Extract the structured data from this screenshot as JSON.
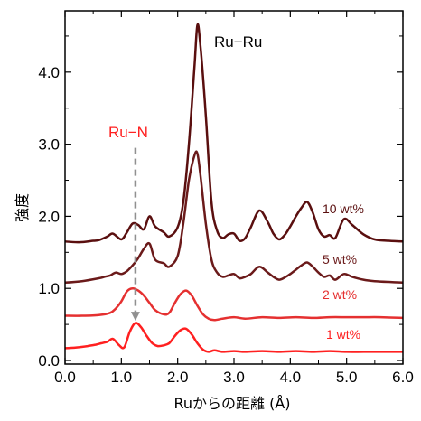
{
  "chart_data": {
    "type": "line",
    "xlabel": "Ruからの距離 (Å)",
    "ylabel": "強度",
    "xlim": [
      0.0,
      6.0
    ],
    "ylim": [
      -0.05,
      4.85
    ],
    "x_ticks": [
      "0.0",
      "1.0",
      "2.0",
      "3.0",
      "4.0",
      "5.0",
      "6.0"
    ],
    "y_ticks": [
      "0.0",
      "1.0",
      "2.0",
      "3.0",
      "4.0"
    ],
    "grid": false,
    "annotations": [
      {
        "text": "Ru−Ru",
        "color": "#000000"
      },
      {
        "text": "Ru−N",
        "color": "#ff2020",
        "arrow_x": 1.25,
        "arrow_from_y": 2.95,
        "arrow_to_y": 0.55
      }
    ],
    "series": [
      {
        "name": "10 wt%",
        "color": "#5a0f0f",
        "x": [
          0.0,
          0.25,
          0.5,
          0.6,
          0.75,
          0.85,
          1.0,
          1.1,
          1.2,
          1.3,
          1.4,
          1.5,
          1.6,
          1.75,
          1.85,
          2.0,
          2.1,
          2.2,
          2.3,
          2.35,
          2.4,
          2.5,
          2.6,
          2.7,
          2.8,
          2.9,
          3.0,
          3.1,
          3.2,
          3.3,
          3.45,
          3.6,
          3.7,
          3.8,
          3.9,
          4.0,
          4.1,
          4.2,
          4.3,
          4.4,
          4.5,
          4.6,
          4.7,
          4.8,
          4.95,
          5.1,
          5.3,
          5.5,
          5.75,
          6.0
        ],
        "y": [
          1.65,
          1.64,
          1.66,
          1.67,
          1.72,
          1.76,
          1.68,
          1.78,
          1.9,
          1.88,
          1.82,
          2.0,
          1.86,
          1.78,
          1.72,
          1.85,
          2.2,
          3.0,
          4.1,
          4.65,
          4.4,
          3.4,
          2.2,
          1.8,
          1.7,
          1.75,
          1.76,
          1.66,
          1.7,
          1.85,
          2.08,
          1.92,
          1.76,
          1.68,
          1.74,
          1.86,
          2.0,
          2.12,
          2.2,
          2.05,
          1.82,
          1.72,
          1.74,
          1.7,
          1.96,
          1.88,
          1.75,
          1.68,
          1.66,
          1.65
        ]
      },
      {
        "name": "5 wt%",
        "color": "#6b1a1a",
        "x": [
          0.0,
          0.3,
          0.6,
          0.7,
          0.8,
          0.9,
          1.0,
          1.1,
          1.2,
          1.3,
          1.4,
          1.5,
          1.6,
          1.75,
          1.85,
          2.0,
          2.1,
          2.2,
          2.3,
          2.35,
          2.4,
          2.5,
          2.6,
          2.7,
          2.8,
          2.9,
          3.0,
          3.1,
          3.2,
          3.3,
          3.45,
          3.6,
          3.7,
          3.8,
          3.9,
          4.0,
          4.1,
          4.2,
          4.3,
          4.4,
          4.5,
          4.6,
          4.7,
          4.8,
          4.95,
          5.1,
          5.3,
          5.5,
          5.75,
          6.0
        ],
        "y": [
          1.08,
          1.1,
          1.14,
          1.16,
          1.18,
          1.22,
          1.2,
          1.24,
          1.32,
          1.42,
          1.55,
          1.62,
          1.4,
          1.35,
          1.3,
          1.45,
          1.9,
          2.5,
          2.85,
          2.87,
          2.6,
          1.9,
          1.4,
          1.22,
          1.16,
          1.18,
          1.2,
          1.14,
          1.16,
          1.2,
          1.3,
          1.22,
          1.16,
          1.12,
          1.15,
          1.2,
          1.26,
          1.32,
          1.36,
          1.3,
          1.22,
          1.16,
          1.18,
          1.12,
          1.2,
          1.16,
          1.12,
          1.1,
          1.09,
          1.08
        ]
      },
      {
        "name": "2 wt%",
        "color": "#e53030",
        "x": [
          0.0,
          0.3,
          0.6,
          0.8,
          0.9,
          1.0,
          1.1,
          1.2,
          1.3,
          1.4,
          1.5,
          1.6,
          1.75,
          1.85,
          1.95,
          2.05,
          2.15,
          2.25,
          2.35,
          2.45,
          2.55,
          2.65,
          2.8,
          3.0,
          3.2,
          3.5,
          3.8,
          4.1,
          4.4,
          4.7,
          5.0,
          5.3,
          5.6,
          6.0
        ],
        "y": [
          0.62,
          0.62,
          0.63,
          0.66,
          0.72,
          0.82,
          0.96,
          1.0,
          0.97,
          0.9,
          0.8,
          0.7,
          0.64,
          0.66,
          0.8,
          0.92,
          0.97,
          0.9,
          0.76,
          0.64,
          0.58,
          0.56,
          0.58,
          0.6,
          0.58,
          0.6,
          0.59,
          0.6,
          0.59,
          0.6,
          0.6,
          0.6,
          0.6,
          0.59
        ]
      },
      {
        "name": "1 wt%",
        "color": "#ff2020",
        "x": [
          0.0,
          0.2,
          0.4,
          0.55,
          0.65,
          0.75,
          0.85,
          0.95,
          1.05,
          1.15,
          1.25,
          1.35,
          1.45,
          1.55,
          1.65,
          1.75,
          1.85,
          1.95,
          2.05,
          2.15,
          2.25,
          2.35,
          2.45,
          2.55,
          2.65,
          2.8,
          3.0,
          3.2,
          3.5,
          3.8,
          4.1,
          4.4,
          4.7,
          5.0,
          5.3,
          5.6,
          6.0
        ],
        "y": [
          0.17,
          0.18,
          0.2,
          0.22,
          0.24,
          0.26,
          0.3,
          0.22,
          0.18,
          0.4,
          0.52,
          0.46,
          0.34,
          0.24,
          0.2,
          0.21,
          0.24,
          0.34,
          0.42,
          0.44,
          0.36,
          0.24,
          0.15,
          0.12,
          0.14,
          0.12,
          0.13,
          0.12,
          0.13,
          0.12,
          0.13,
          0.12,
          0.13,
          0.12,
          0.12,
          0.12,
          0.12
        ]
      }
    ]
  }
}
